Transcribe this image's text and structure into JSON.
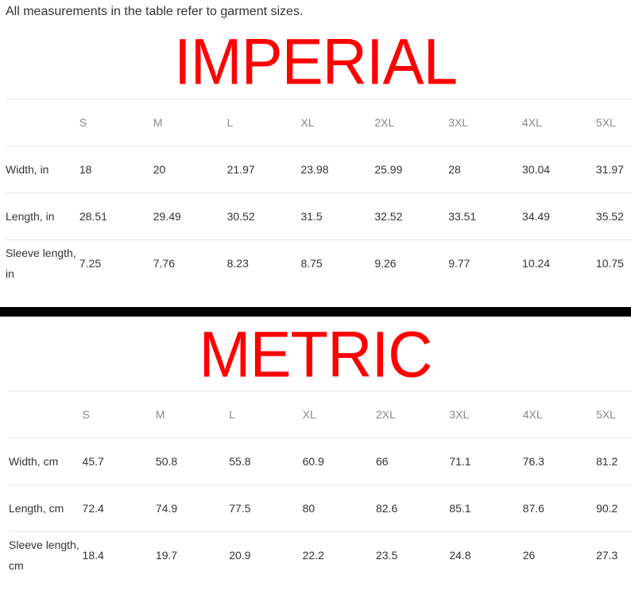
{
  "intro": "All measurements in the table refer to garment sizes.",
  "imperial": {
    "title": "IMPERIAL",
    "sizes": [
      "S",
      "M",
      "L",
      "XL",
      "2XL",
      "3XL",
      "4XL",
      "5XL"
    ],
    "rows": [
      {
        "label": "Width, in",
        "values": [
          "18",
          "20",
          "21.97",
          "23.98",
          "25.99",
          "28",
          "30.04",
          "31.97"
        ]
      },
      {
        "label": "Length, in",
        "values": [
          "28.51",
          "29.49",
          "30.52",
          "31.5",
          "32.52",
          "33.51",
          "34.49",
          "35.52"
        ]
      },
      {
        "label": "Sleeve length, in",
        "values": [
          "7.25",
          "7.76",
          "8.23",
          "8.75",
          "9.26",
          "9.77",
          "10.24",
          "10.75"
        ]
      }
    ]
  },
  "metric": {
    "title": "METRIC",
    "sizes": [
      "S",
      "M",
      "L",
      "XL",
      "2XL",
      "3XL",
      "4XL",
      "5XL"
    ],
    "rows": [
      {
        "label": "Width, cm",
        "values": [
          "45.7",
          "50.8",
          "55.8",
          "60.9",
          "66",
          "71.1",
          "76.3",
          "81.2"
        ]
      },
      {
        "label": "Length, cm",
        "values": [
          "72.4",
          "74.9",
          "77.5",
          "80",
          "82.6",
          "85.1",
          "87.6",
          "90.2"
        ]
      },
      {
        "label": "Sleeve length, cm",
        "values": [
          "18.4",
          "19.7",
          "20.9",
          "22.2",
          "23.5",
          "24.8",
          "26",
          "27.3"
        ]
      }
    ]
  },
  "colors": {
    "title": "#ff0000",
    "separator": "#000000"
  }
}
